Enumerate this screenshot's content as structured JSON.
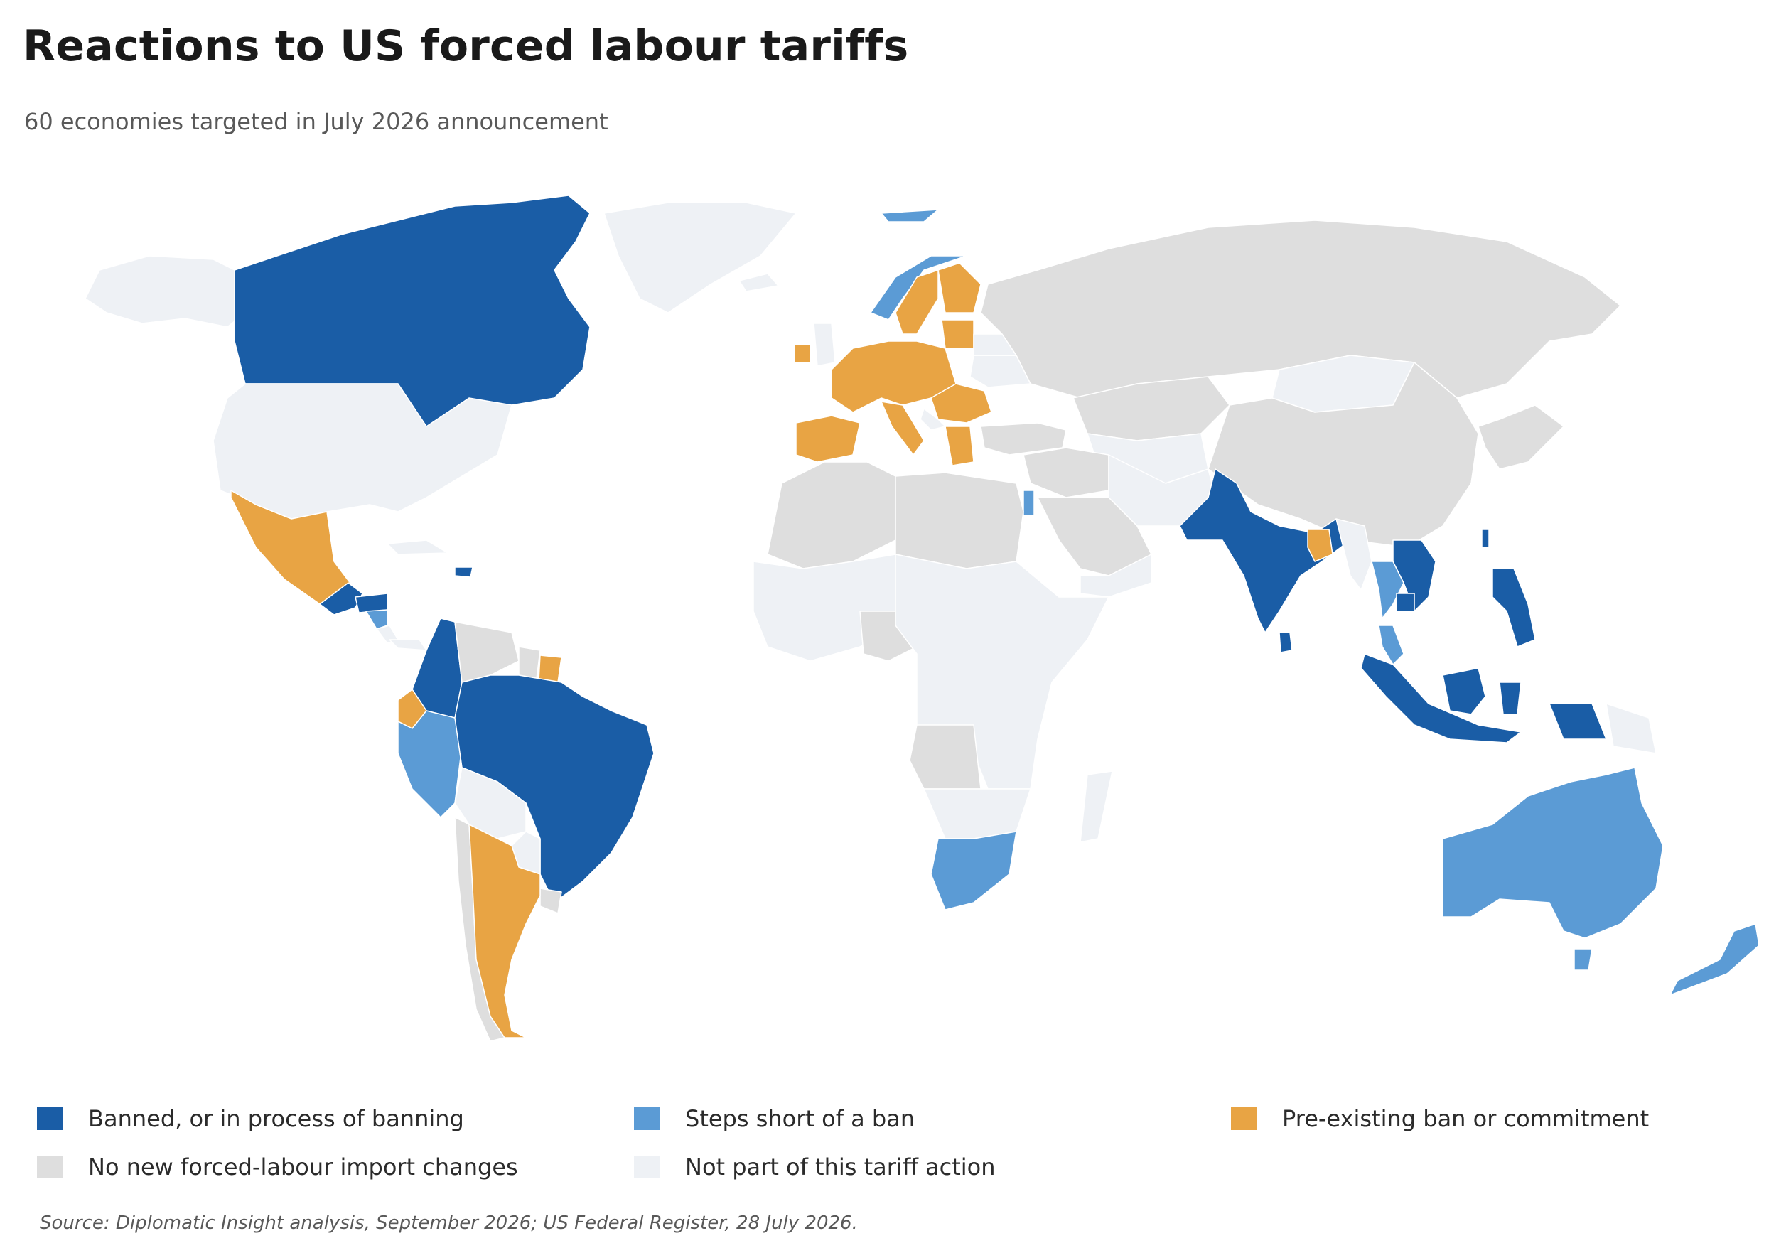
{
  "title": "Reactions to US forced labour tariffs",
  "subtitle": "60 economies targeted in July 2026 announcement",
  "source": "Source: Diplomatic Insight analysis, September 2026; US Federal Register, 28 July 2026.",
  "categories": {
    "banned": {
      "label": "Banned, or in process of banning",
      "color": "#1a5da6"
    },
    "steps": {
      "label": "Steps short of a ban",
      "color": "#5b9bd5"
    },
    "preexist": {
      "label": "Pre-existing ban or commitment",
      "color": "#e8a444"
    },
    "nochange": {
      "label": "No new forced-labour import changes",
      "color": "#dedede"
    },
    "notpart": {
      "label": "Not part of this tariff action",
      "color": "#eef1f5"
    }
  },
  "legend_order": [
    "banned",
    "steps",
    "preexist",
    "nochange",
    "notpart"
  ],
  "countries": {
    "canada": "banned",
    "usa": "notpart",
    "alaska": "notpart",
    "greenland": "notpart",
    "mexico": "preexist",
    "guatemala": "banned",
    "honduras": "banned",
    "nicaragua": "steps",
    "costa-rica": "notpart",
    "panama": "notpart",
    "cuba": "notpart",
    "dominican-republic": "banned",
    "colombia": "banned",
    "venezuela": "nochange",
    "guyana": "nochange",
    "suriname": "preexist",
    "ecuador": "preexist",
    "peru": "steps",
    "brazil": "banned",
    "bolivia": "notpart",
    "paraguay": "notpart",
    "uruguay": "nochange",
    "chile": "nochange",
    "argentina": "preexist",
    "iceland": "notpart",
    "uk": "notpart",
    "ireland": "preexist",
    "norway": "steps",
    "sweden": "preexist",
    "finland": "preexist",
    "baltics": "preexist",
    "svalbard": "steps",
    "eu-west": "preexist",
    "spain-portugal": "preexist",
    "italy": "preexist",
    "eu-east": "preexist",
    "greece": "preexist",
    "balkans": "notpart",
    "ukraine": "notpart",
    "belarus": "notpart",
    "turkey": "nochange",
    "russia": "nochange",
    "kazakhstan": "nochange",
    "central-asia": "notpart",
    "mongolia": "notpart",
    "china": "nochange",
    "korea-japan": "nochange",
    "middle-east": "nochange",
    "iran-afghanistan": "notpart",
    "arabia": "nochange",
    "yemen-oman": "notpart",
    "jordan-israel": "steps",
    "north-africa": "nochange",
    "egypt-libya": "nochange",
    "sahel-west-africa": "notpart",
    "nigeria": "nochange",
    "central-east-africa": "notpart",
    "angola": "nochange",
    "southern-africa": "notpart",
    "south-africa": "steps",
    "madagascar": "notpart",
    "pakistan-india": "banned",
    "sri-lanka": "banned",
    "bangladesh": "preexist",
    "myanmar": "notpart",
    "thailand": "steps",
    "laos-vietnam": "banned",
    "cambodia": "banned",
    "malaysia": "steps",
    "sumatra-java": "banned",
    "borneo": "banned",
    "sulawesi": "banned",
    "philippines": "banned",
    "taiwan": "banned",
    "papua": "banned",
    "png": "notpart",
    "australia": "steps",
    "tasmania": "steps",
    "new-zealand": "steps"
  }
}
